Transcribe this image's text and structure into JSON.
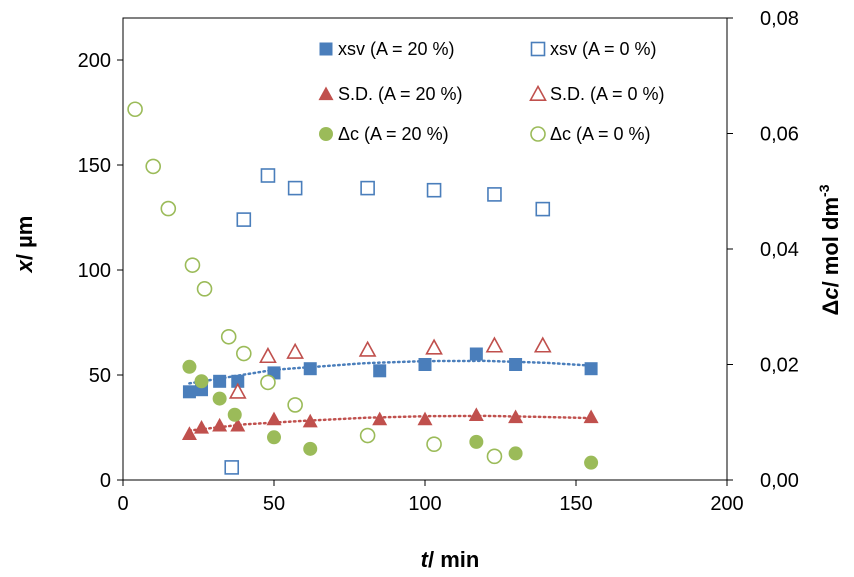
{
  "chart_data": {
    "type": "scatter",
    "title": "",
    "xlabel": {
      "var": "t",
      "rest": "/ min"
    },
    "ylabel": {
      "var": "x",
      "rest": "/ µm"
    },
    "y2label": {
      "delta": "Δ",
      "var": "c",
      "rest": "/ mol dm",
      "sup": "-3"
    },
    "xlim": [
      0,
      200
    ],
    "ylim": [
      0,
      220
    ],
    "y2lim": [
      0,
      0.08
    ],
    "x_ticks": [
      "0",
      "50",
      "100",
      "150",
      "200"
    ],
    "y_ticks": [
      "0",
      "50",
      "100",
      "150",
      "200"
    ],
    "y2_ticks": [
      "0,00",
      "0,02",
      "0,04",
      "0,06",
      "0,08"
    ],
    "grid": false,
    "legend_position": "top-right",
    "colors": {
      "blue": "#4a7ebb",
      "red": "#c0504d",
      "green": "#9bbb59"
    },
    "series": [
      {
        "name": "xsv (A = 20 %)",
        "axis": "left",
        "marker": "square-filled",
        "color": "#4a7ebb",
        "x": [
          22,
          26,
          32,
          38,
          50,
          62,
          85,
          100,
          117,
          130,
          155
        ],
        "y": [
          42,
          43,
          47,
          47,
          51,
          53,
          52,
          55,
          60,
          55,
          53
        ],
        "trend": [
          [
            22,
            46
          ],
          [
            50,
            52.5
          ],
          [
            80,
            55.6
          ],
          [
            100,
            56.6
          ],
          [
            120,
            56.7
          ],
          [
            140,
            55.8
          ],
          [
            155,
            54.5
          ]
        ]
      },
      {
        "name": "xsv (A = 0 %)",
        "axis": "left",
        "marker": "square-open",
        "color": "#4a7ebb",
        "x": [
          36,
          40,
          48,
          57,
          81,
          103,
          123,
          139
        ],
        "y": [
          6,
          124,
          145,
          139,
          139,
          138,
          136,
          129
        ]
      },
      {
        "name": "S.D. (A = 20 %)",
        "axis": "left",
        "marker": "triangle-filled",
        "color": "#c0504d",
        "x": [
          22,
          26,
          32,
          38,
          50,
          62,
          85,
          100,
          117,
          130,
          155
        ],
        "y": [
          22,
          25,
          26,
          26,
          29,
          28,
          29,
          29,
          31,
          30,
          30
        ],
        "trend": [
          [
            22,
            23.5
          ],
          [
            40,
            26.5
          ],
          [
            60,
            28.2
          ],
          [
            80,
            29.6
          ],
          [
            100,
            30.4
          ],
          [
            120,
            30.5
          ],
          [
            140,
            30
          ],
          [
            155,
            29.5
          ]
        ]
      },
      {
        "name": "S.D. (A = 0 %)",
        "axis": "left",
        "marker": "triangle-open",
        "color": "#c0504d",
        "x": [
          38,
          48,
          57,
          81,
          103,
          123,
          139
        ],
        "y": [
          42,
          59,
          61,
          62,
          63,
          64,
          64
        ]
      },
      {
        "name": "Δc (A = 20 %)",
        "axis": "right",
        "marker": "circle-filled",
        "color": "#9bbb59",
        "x": [
          22,
          26,
          32,
          37,
          50,
          62,
          117,
          130,
          155
        ],
        "y": [
          0.0196,
          0.0171,
          0.0141,
          0.0113,
          0.0074,
          0.0054,
          0.0066,
          0.0046,
          0.003
        ]
      },
      {
        "name": "Δc (A = 0 %)",
        "axis": "right",
        "marker": "circle-open",
        "color": "#9bbb59",
        "x": [
          4,
          10,
          15,
          23,
          27,
          35,
          40,
          48,
          57,
          81,
          103,
          123
        ],
        "y": [
          0.0642,
          0.0543,
          0.047,
          0.0372,
          0.0331,
          0.0248,
          0.0219,
          0.0169,
          0.013,
          0.0077,
          0.0062,
          0.0041
        ]
      }
    ]
  }
}
